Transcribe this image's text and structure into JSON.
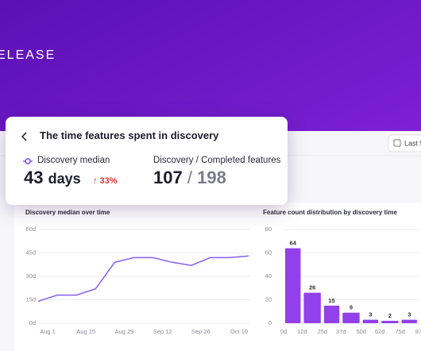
{
  "banner": {
    "text": "ELEASE"
  },
  "toolbar": {
    "date_button": "Last 9"
  },
  "card": {
    "title": "The time features spent in discovery",
    "metrics": [
      {
        "label": "Discovery median",
        "value": "43",
        "unit": "days",
        "change": "↑ 33%"
      },
      {
        "label": "Discovery / Completed features",
        "value": "107",
        "separator": "/",
        "total": "198"
      }
    ]
  },
  "chart_data": [
    {
      "type": "line",
      "title": "Discovery median over time",
      "categories": [
        null,
        "Aug 1",
        null,
        "Aug 15",
        null,
        "Aug 29",
        null,
        "Sep 12",
        null,
        "Sep 26",
        null,
        "Oct 10"
      ],
      "values": [
        14,
        18,
        18,
        22,
        39,
        42,
        42,
        39,
        37,
        42,
        42,
        43
      ],
      "color": "#8b5cf6",
      "ylim": [
        0,
        60
      ],
      "yticks": [
        {
          "value": 0,
          "label": "0d"
        },
        {
          "value": 15,
          "label": "15d"
        },
        {
          "value": 30,
          "label": "30d"
        },
        {
          "value": 45,
          "label": "45d"
        },
        {
          "value": 60,
          "label": "60d"
        }
      ],
      "grid": true
    },
    {
      "type": "histogram",
      "title": "Feature count distribution by discovery time",
      "bins": [
        0,
        12,
        25,
        37,
        50,
        62,
        75,
        87
      ],
      "values": [
        64,
        26,
        15,
        9,
        3,
        2,
        3
      ],
      "color": "#9240ea",
      "xlim": [
        0,
        87
      ],
      "xticks": [
        {
          "value": 0,
          "label": "0d"
        },
        {
          "value": 12,
          "label": "12d"
        },
        {
          "value": 25,
          "label": "25d"
        },
        {
          "value": 37,
          "label": "37d"
        },
        {
          "value": 50,
          "label": "50d"
        },
        {
          "value": 62,
          "label": "62d"
        },
        {
          "value": 75,
          "label": "75d"
        },
        {
          "value": 87,
          "label": "87"
        }
      ],
      "ylim": [
        0,
        80
      ],
      "yticks": [
        0,
        20,
        40,
        60,
        80
      ],
      "grid": true
    }
  ]
}
